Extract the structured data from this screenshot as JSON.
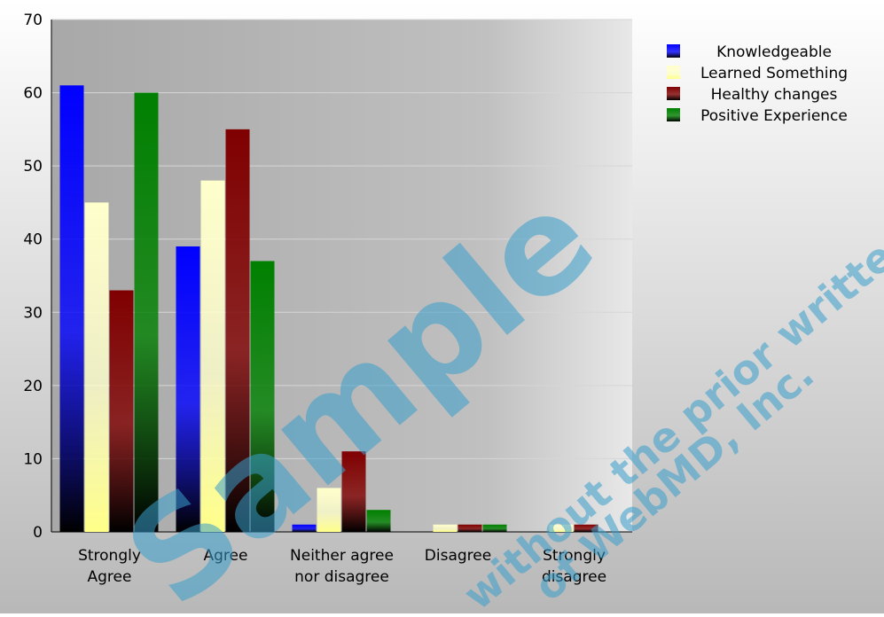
{
  "chart_data": {
    "type": "bar",
    "categories": [
      [
        "Strongly",
        "Agree"
      ],
      [
        "Agree"
      ],
      [
        "Neither agree",
        "nor disagree"
      ],
      [
        "Disagree"
      ],
      [
        "Strongly",
        "disagree"
      ]
    ],
    "series": [
      {
        "name": "Knowledgeable",
        "color": "#0000ff",
        "values": [
          61,
          39,
          1,
          0,
          0
        ]
      },
      {
        "name": "Learned Something",
        "color": "#ffffcc",
        "values": [
          45,
          48,
          6,
          1,
          1
        ]
      },
      {
        "name": "Healthy changes",
        "color": "#800000",
        "values": [
          33,
          55,
          11,
          1,
          1
        ]
      },
      {
        "name": "Positive Experience",
        "color": "#008000",
        "values": [
          60,
          37,
          3,
          1,
          0
        ]
      }
    ],
    "ylim": [
      0,
      70
    ],
    "yticks": [
      0,
      10,
      20,
      30,
      40,
      50,
      60,
      70
    ],
    "grid": true,
    "legend": "top-right",
    "plot_background": "#c0c0c0"
  },
  "watermark": {
    "main": "Sample",
    "line1": "without the prior written",
    "line2": "of WebMD, Inc."
  }
}
